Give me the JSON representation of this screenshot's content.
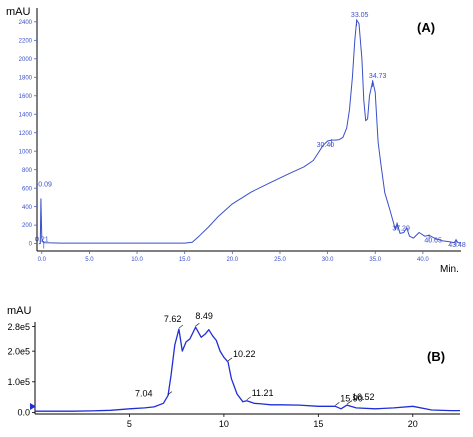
{
  "chart_data": [
    {
      "type": "line",
      "panel_label": "(A)",
      "ylabel": "mAU",
      "xlabel": "Min.",
      "xlim": [
        -0.5,
        44
      ],
      "ylim": [
        -80,
        2550
      ],
      "x_ticks": [
        "0.0",
        "5.0",
        "10.0",
        "15.0",
        "20.0",
        "25.0",
        "30.0",
        "35.0",
        "40.0"
      ],
      "x_tick_values": [
        0,
        5,
        10,
        15,
        20,
        25,
        30,
        35,
        40
      ],
      "y_ticks": [
        "0",
        "200",
        "400",
        "600",
        "800",
        "1000",
        "1200",
        "1400",
        "1600",
        "1800",
        "2000",
        "2200",
        "2400"
      ],
      "y_tick_values": [
        0,
        200,
        400,
        600,
        800,
        1000,
        1200,
        1400,
        1600,
        1800,
        2000,
        2200,
        2400
      ],
      "series": [
        {
          "color": "#3a4fc8",
          "x": [
            -0.3,
            -0.15,
            -0.09,
            0.0,
            0.1,
            0.3,
            1.0,
            2.0,
            5.0,
            10.0,
            15.0,
            15.8,
            16.5,
            17.5,
            18.5,
            20.0,
            22.0,
            24.0,
            26.0,
            27.5,
            28.5,
            29.0,
            29.5,
            30.0,
            30.4,
            30.8,
            31.2,
            31.6,
            32.0,
            32.3,
            32.6,
            32.85,
            33.05,
            33.3,
            33.6,
            33.8,
            34.0,
            34.2,
            34.4,
            34.73,
            35.0,
            35.3,
            35.6,
            36.0,
            36.5,
            36.9,
            37.1,
            37.29,
            37.6,
            38.0,
            38.3,
            38.6,
            39.0,
            39.6,
            40.2,
            40.65,
            41.2,
            42.0,
            42.8,
            43.3,
            43.48,
            43.7,
            44.0
          ],
          "y": [
            0,
            0,
            480,
            60,
            20,
            10,
            8,
            5,
            5,
            5,
            5,
            15,
            80,
            180,
            290,
            430,
            560,
            660,
            760,
            830,
            900,
            980,
            1060,
            1110,
            1120,
            1120,
            1125,
            1150,
            1250,
            1450,
            1800,
            2200,
            2420,
            2380,
            2000,
            1550,
            1330,
            1350,
            1600,
            1760,
            1640,
            1100,
            850,
            550,
            380,
            230,
            150,
            220,
            110,
            120,
            170,
            80,
            60,
            120,
            80,
            90,
            60,
            30,
            20,
            10,
            40,
            10,
            10
          ]
        }
      ],
      "annotations": [
        {
          "text": "33.05",
          "x": 33.05,
          "y": 2420
        },
        {
          "text": "34.73",
          "x": 34.73,
          "y": 1760
        },
        {
          "text": "30.40",
          "x": 30.4,
          "y": 1120
        },
        {
          "text": "37.29",
          "x": 37.29,
          "y": 220
        },
        {
          "text": "40.65",
          "x": 40.65,
          "y": 90
        },
        {
          "text": "43.48",
          "x": 43.48,
          "y": 40
        },
        {
          "text": "-0.09",
          "x": -0.09,
          "y": 480
        },
        {
          "text": "0.21",
          "x": 0.21,
          "y": 12
        }
      ]
    },
    {
      "type": "line",
      "panel_label": "(B)",
      "ylabel": "mAU",
      "xlim": [
        0,
        22.5
      ],
      "ylim": [
        -0.05,
        2.95
      ],
      "y_ticks": [
        "0.0",
        "1.0e5",
        "2.0e5",
        "2.8e5"
      ],
      "y_tick_values": [
        0,
        1.0,
        2.0,
        2.8
      ],
      "x_ticks": [
        "5",
        "10",
        "15",
        "20"
      ],
      "x_tick_values": [
        5,
        10,
        15,
        20
      ],
      "series": [
        {
          "color": "#1f2fd6",
          "x": [
            0,
            1.0,
            2.0,
            3.0,
            4.0,
            5.0,
            5.8,
            6.3,
            6.8,
            7.04,
            7.2,
            7.4,
            7.62,
            7.8,
            8.0,
            8.2,
            8.5,
            8.8,
            9.0,
            9.2,
            9.4,
            9.6,
            9.8,
            10.0,
            10.22,
            10.4,
            10.7,
            11.0,
            11.21,
            11.6,
            12.0,
            12.5,
            13.0,
            14.0,
            15.0,
            15.9,
            16.2,
            16.52,
            17.0,
            18.0,
            19.0,
            20.0,
            21.0,
            22.0,
            22.5
          ],
          "y": [
            0.04,
            0.04,
            0.04,
            0.05,
            0.07,
            0.12,
            0.15,
            0.18,
            0.3,
            0.55,
            1.2,
            2.2,
            2.72,
            2.0,
            2.3,
            2.4,
            2.78,
            2.45,
            2.55,
            2.7,
            2.5,
            2.35,
            2.0,
            1.8,
            1.65,
            1.1,
            0.6,
            0.35,
            0.38,
            0.3,
            0.28,
            0.25,
            0.25,
            0.24,
            0.2,
            0.2,
            0.12,
            0.24,
            0.15,
            0.12,
            0.15,
            0.2,
            0.08,
            0.06,
            0.06
          ]
        }
      ],
      "annotations": [
        {
          "text": "7.62",
          "x": 7.62,
          "y": 2.72
        },
        {
          "text": "8.49",
          "x": 8.49,
          "y": 2.78
        },
        {
          "text": "10.22",
          "x": 10.22,
          "y": 1.65
        },
        {
          "text": "7.04",
          "x": 7.04,
          "y": 0.55
        },
        {
          "text": "11.21",
          "x": 11.21,
          "y": 0.38
        },
        {
          "text": "15.90",
          "x": 15.9,
          "y": 0.2
        },
        {
          "text": "16.52",
          "x": 16.52,
          "y": 0.24
        }
      ]
    }
  ]
}
